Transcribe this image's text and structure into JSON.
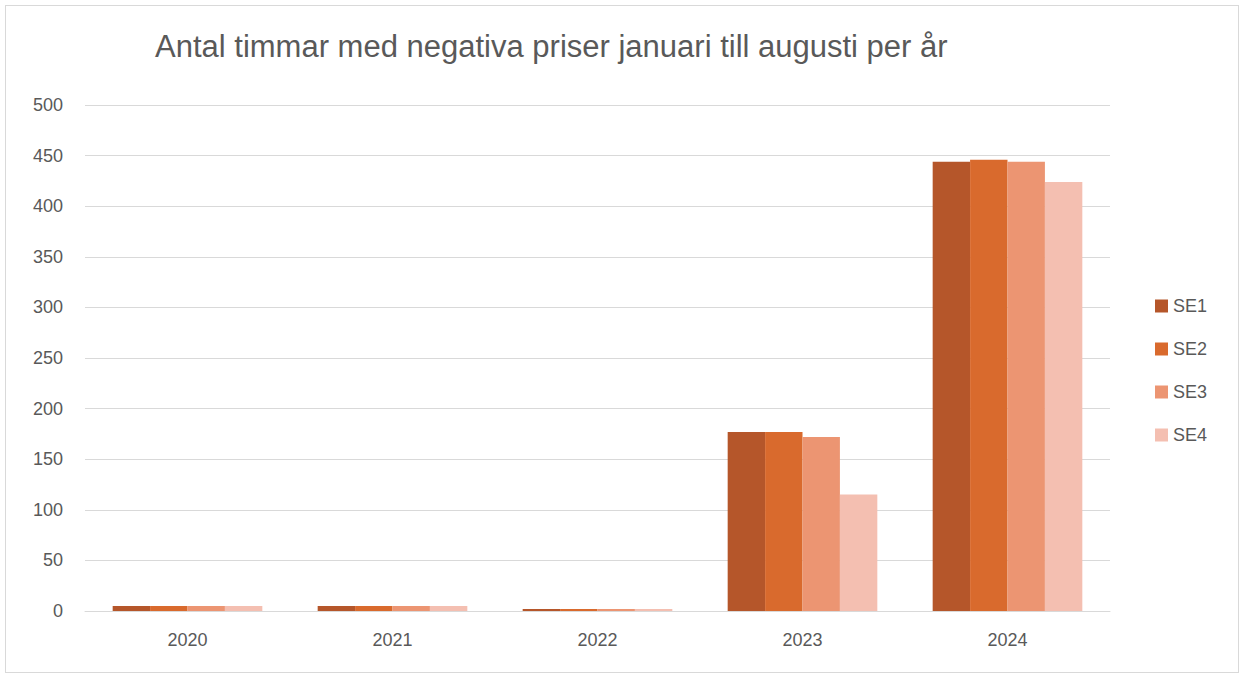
{
  "chart_data": {
    "type": "bar",
    "title": "Antal timmar med negativa priser januari till augusti per år",
    "categories": [
      "2020",
      "2021",
      "2022",
      "2023",
      "2024"
    ],
    "series": [
      {
        "name": "SE1",
        "color": "#b5562a",
        "values": [
          5,
          5,
          2,
          177,
          444
        ]
      },
      {
        "name": "SE2",
        "color": "#d96a2d",
        "values": [
          5,
          5,
          2,
          177,
          446
        ]
      },
      {
        "name": "SE3",
        "color": "#ec9572",
        "values": [
          5,
          5,
          2,
          172,
          444
        ]
      },
      {
        "name": "SE4",
        "color": "#f4bfb1",
        "values": [
          5,
          5,
          2,
          115,
          424
        ]
      }
    ],
    "ylim": [
      0,
      500
    ],
    "yticks": [
      0,
      50,
      100,
      150,
      200,
      250,
      300,
      350,
      400,
      450,
      500
    ],
    "grid": true,
    "legend": "right"
  }
}
